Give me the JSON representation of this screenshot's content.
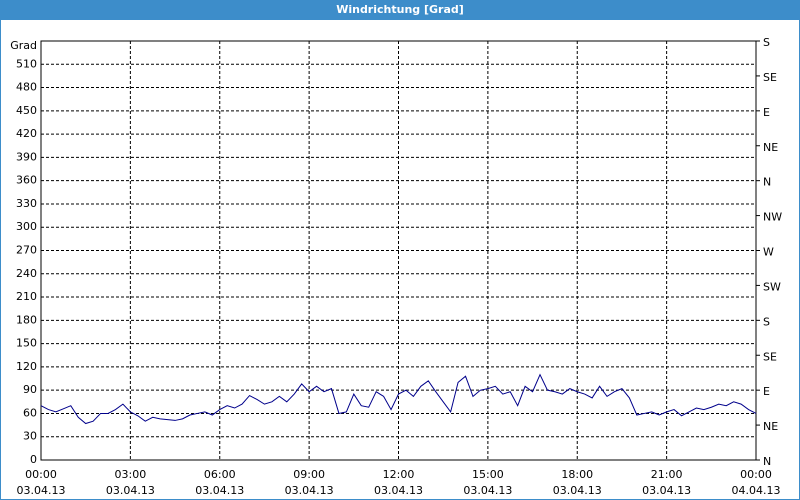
{
  "chart_data": {
    "type": "line",
    "title": "Windrichtung [Grad]",
    "y_label": "Grad",
    "x": [
      0,
      0.25,
      0.5,
      0.75,
      1,
      1.25,
      1.5,
      1.75,
      2,
      2.25,
      2.5,
      2.75,
      3,
      3.25,
      3.5,
      3.75,
      4,
      4.25,
      4.5,
      4.75,
      5,
      5.25,
      5.5,
      5.75,
      6,
      6.25,
      6.5,
      6.75,
      7,
      7.25,
      7.5,
      7.75,
      8,
      8.25,
      8.5,
      8.75,
      9,
      9.25,
      9.5,
      9.75,
      10,
      10.25,
      10.5,
      10.75,
      11,
      11.25,
      11.5,
      11.75,
      12,
      12.25,
      12.5,
      12.75,
      13,
      13.25,
      13.5,
      13.75,
      14,
      14.25,
      14.5,
      14.75,
      15,
      15.25,
      15.5,
      15.75,
      16,
      16.25,
      16.5,
      16.75,
      17,
      17.25,
      17.5,
      17.75,
      18,
      18.25,
      18.5,
      18.75,
      19,
      19.25,
      19.5,
      19.75,
      20,
      20.25,
      20.5,
      20.75,
      21,
      21.25,
      21.5,
      21.75,
      22,
      22.25,
      22.5,
      22.75,
      23,
      23.25,
      23.5,
      23.75,
      24
    ],
    "series": [
      {
        "name": "Windrichtung",
        "color": "#00008b",
        "values": [
          70,
          65,
          62,
          66,
          70,
          55,
          47,
          50,
          60,
          60,
          65,
          72,
          62,
          57,
          50,
          55,
          53,
          52,
          51,
          53,
          58,
          60,
          62,
          58,
          65,
          70,
          67,
          72,
          83,
          78,
          72,
          75,
          82,
          75,
          85,
          98,
          88,
          95,
          88,
          92,
          60,
          62,
          85,
          70,
          68,
          88,
          82,
          65,
          85,
          90,
          82,
          95,
          102,
          88,
          75,
          62,
          100,
          108,
          82,
          90,
          92,
          95,
          85,
          88,
          70,
          95,
          88,
          110,
          90,
          88,
          85,
          92,
          88,
          85,
          80,
          95,
          82,
          88,
          92,
          80,
          58,
          60,
          62,
          58,
          62,
          65,
          57,
          62,
          67,
          65,
          68,
          72,
          70,
          75,
          72,
          65,
          60
        ]
      }
    ],
    "xlim": [
      0,
      24
    ],
    "xticks": [
      {
        "value": 0,
        "label": "00:00",
        "date": "03.04.13"
      },
      {
        "value": 3,
        "label": "03:00",
        "date": "03.04.13"
      },
      {
        "value": 6,
        "label": "06:00",
        "date": "03.04.13"
      },
      {
        "value": 9,
        "label": "09:00",
        "date": "03.04.13"
      },
      {
        "value": 12,
        "label": "12:00",
        "date": "03.04.13"
      },
      {
        "value": 15,
        "label": "15:00",
        "date": "03.04.13"
      },
      {
        "value": 18,
        "label": "18:00",
        "date": "03.04.13"
      },
      {
        "value": 21,
        "label": "21:00",
        "date": "03.04.13"
      },
      {
        "value": 24,
        "label": "00:00",
        "date": "04.04.13"
      }
    ],
    "ylim": [
      0,
      540
    ],
    "yticks": [
      0,
      30,
      60,
      90,
      120,
      150,
      180,
      210,
      240,
      270,
      300,
      330,
      360,
      390,
      420,
      450,
      480,
      510
    ],
    "y2lim": [
      0,
      540
    ],
    "y2ticks": [
      {
        "value": 0,
        "label": "N"
      },
      {
        "value": 45,
        "label": "NE"
      },
      {
        "value": 90,
        "label": "E"
      },
      {
        "value": 135,
        "label": "SE"
      },
      {
        "value": 180,
        "label": "S"
      },
      {
        "value": 225,
        "label": "SW"
      },
      {
        "value": 270,
        "label": "W"
      },
      {
        "value": 315,
        "label": "NW"
      },
      {
        "value": 360,
        "label": "N"
      },
      {
        "value": 405,
        "label": "NE"
      },
      {
        "value": 450,
        "label": "E"
      },
      {
        "value": 495,
        "label": "SE"
      },
      {
        "value": 540,
        "label": "S"
      }
    ],
    "grid": true
  }
}
